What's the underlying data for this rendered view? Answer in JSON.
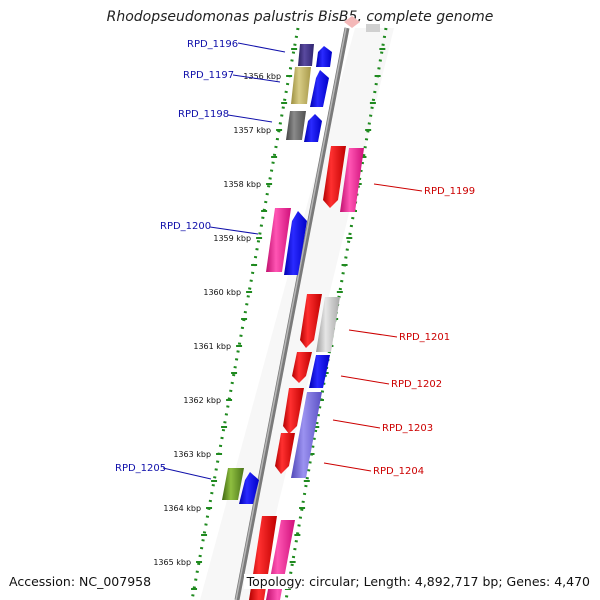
{
  "title": "Rhodopseudomonas palustris BisB5, complete genome",
  "footer": {
    "accession": "Accession: NC_007958",
    "stats": "Topology: circular; Length: 4,892,717 bp; Genes: 4,470"
  },
  "colors": {
    "reverse_label": "#1010aa",
    "forward_label": "#cc0000",
    "backbone": "#888888",
    "tick": "#1f8a1f"
  },
  "scale_ticks": [
    "1356 kbp",
    "1357 kbp",
    "1358 kbp",
    "1359 kbp",
    "1360 kbp",
    "1361 kbp",
    "1362 kbp",
    "1363 kbp",
    "1364 kbp",
    "1365 kbp"
  ],
  "reverse_genes": [
    {
      "label": "RPD_1196",
      "block_color": "#3b2f7a"
    },
    {
      "label": "RPD_1197",
      "block_color": "#b7a95a"
    },
    {
      "label": "RPD_1198",
      "block_color": "#666666"
    },
    {
      "label": "RPD_1200",
      "block_color": "#e8188a"
    },
    {
      "label": "RPD_1205",
      "block_color": "#5f8a22"
    }
  ],
  "forward_genes": [
    {
      "label": "RPD_1199",
      "block_color": "#ee1111"
    },
    {
      "label": "RPD_1201",
      "block_color": "#ee1111"
    },
    {
      "label": "RPD_1202",
      "block_color": "#ee1111"
    },
    {
      "label": "RPD_1203",
      "block_color": "#ee1111"
    },
    {
      "label": "RPD_1204",
      "block_color": "#ee1111"
    }
  ]
}
